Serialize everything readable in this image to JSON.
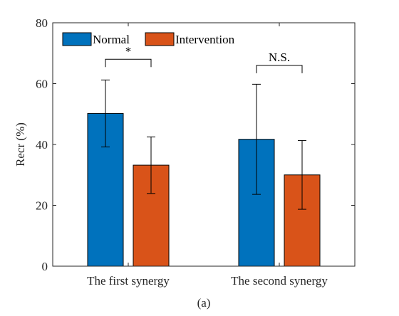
{
  "chart_data": {
    "type": "bar",
    "categories": [
      "The first synergy",
      "The second synergy"
    ],
    "series": [
      {
        "name": "Normal",
        "values": [
          50.2,
          41.7
        ],
        "errors": [
          11.0,
          18.1
        ],
        "color": "#0072BD"
      },
      {
        "name": "Intervention",
        "values": [
          33.2,
          30.0
        ],
        "errors": [
          9.3,
          11.3
        ],
        "color": "#D95319"
      }
    ],
    "xlabel": "",
    "ylabel": "Recr (%)",
    "ylim": [
      0,
      80
    ],
    "yticks": [
      0,
      20,
      40,
      60,
      80
    ],
    "grid": false,
    "legend": {
      "position": "top-left",
      "orientation": "horizontal"
    },
    "annotations": [
      {
        "category_index": 0,
        "text": "*",
        "bracket_y": 68
      },
      {
        "category_index": 1,
        "text": "N.S.",
        "bracket_y": 66
      }
    ],
    "caption": "(a)"
  }
}
